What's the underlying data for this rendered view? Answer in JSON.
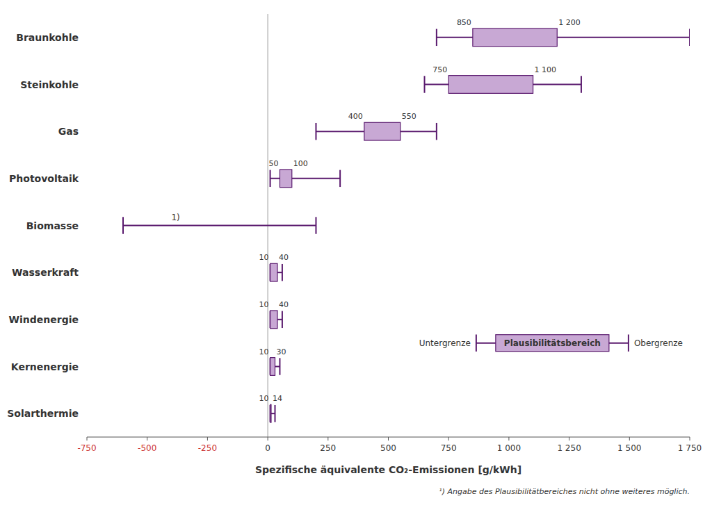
{
  "chart_data": {
    "type": "box",
    "orientation": "horizontal",
    "xlabel": "Spezifische äquivalente CO₂-Emissionen [g/kWh]",
    "categories": [
      "Braunkohle",
      "Steinkohle",
      "Gas",
      "Photovoltaik",
      "Biomasse",
      "Wasserkraft",
      "Windenergie",
      "Kernenergie",
      "Solarthermie"
    ],
    "whisker_min": [
      700,
      650,
      200,
      10,
      -600,
      10,
      10,
      10,
      10
    ],
    "box_left": {
      "values": [
        850,
        750,
        400,
        50,
        null,
        10,
        10,
        10,
        10
      ],
      "value_labels": [
        "850",
        "750",
        "400",
        "50",
        null,
        "10",
        "10",
        "10",
        "10"
      ]
    },
    "box_right": {
      "values": [
        1200,
        1100,
        550,
        100,
        null,
        40,
        40,
        30,
        14
      ],
      "value_labels": [
        "1 200",
        "1 100",
        "550",
        "100",
        null,
        "40",
        "40",
        "30",
        "14"
      ]
    },
    "whisker_max": [
      1750,
      1300,
      700,
      300,
      200,
      60,
      60,
      50,
      30
    ],
    "data_labels": true,
    "annotations": [
      {
        "category": "Biomasse",
        "text": "1)"
      }
    ],
    "footnote": "¹) Angabe des Plausibilitätbereiches nicht ohne weiteres möglich.",
    "legend": "lower right",
    "legend_entries": {
      "box": "Plausibilitätsbereich",
      "whisker_min": "Untergrenze",
      "whisker_max": "Obergrenze"
    },
    "xlim": [
      -750,
      1750
    ],
    "xticks": [
      -750,
      -500,
      -250,
      0,
      250,
      500,
      750,
      {
        "value": 1000,
        "label": "1 000"
      },
      {
        "value": 1250,
        "label": "1 250"
      },
      {
        "value": 1500,
        "label": "1 500"
      },
      {
        "value": 1750,
        "label": "1 750"
      }
    ],
    "grid": false,
    "color": "#5a1a6e",
    "fill_color": "#c8a8d4",
    "negative_color": "#cc3333"
  }
}
